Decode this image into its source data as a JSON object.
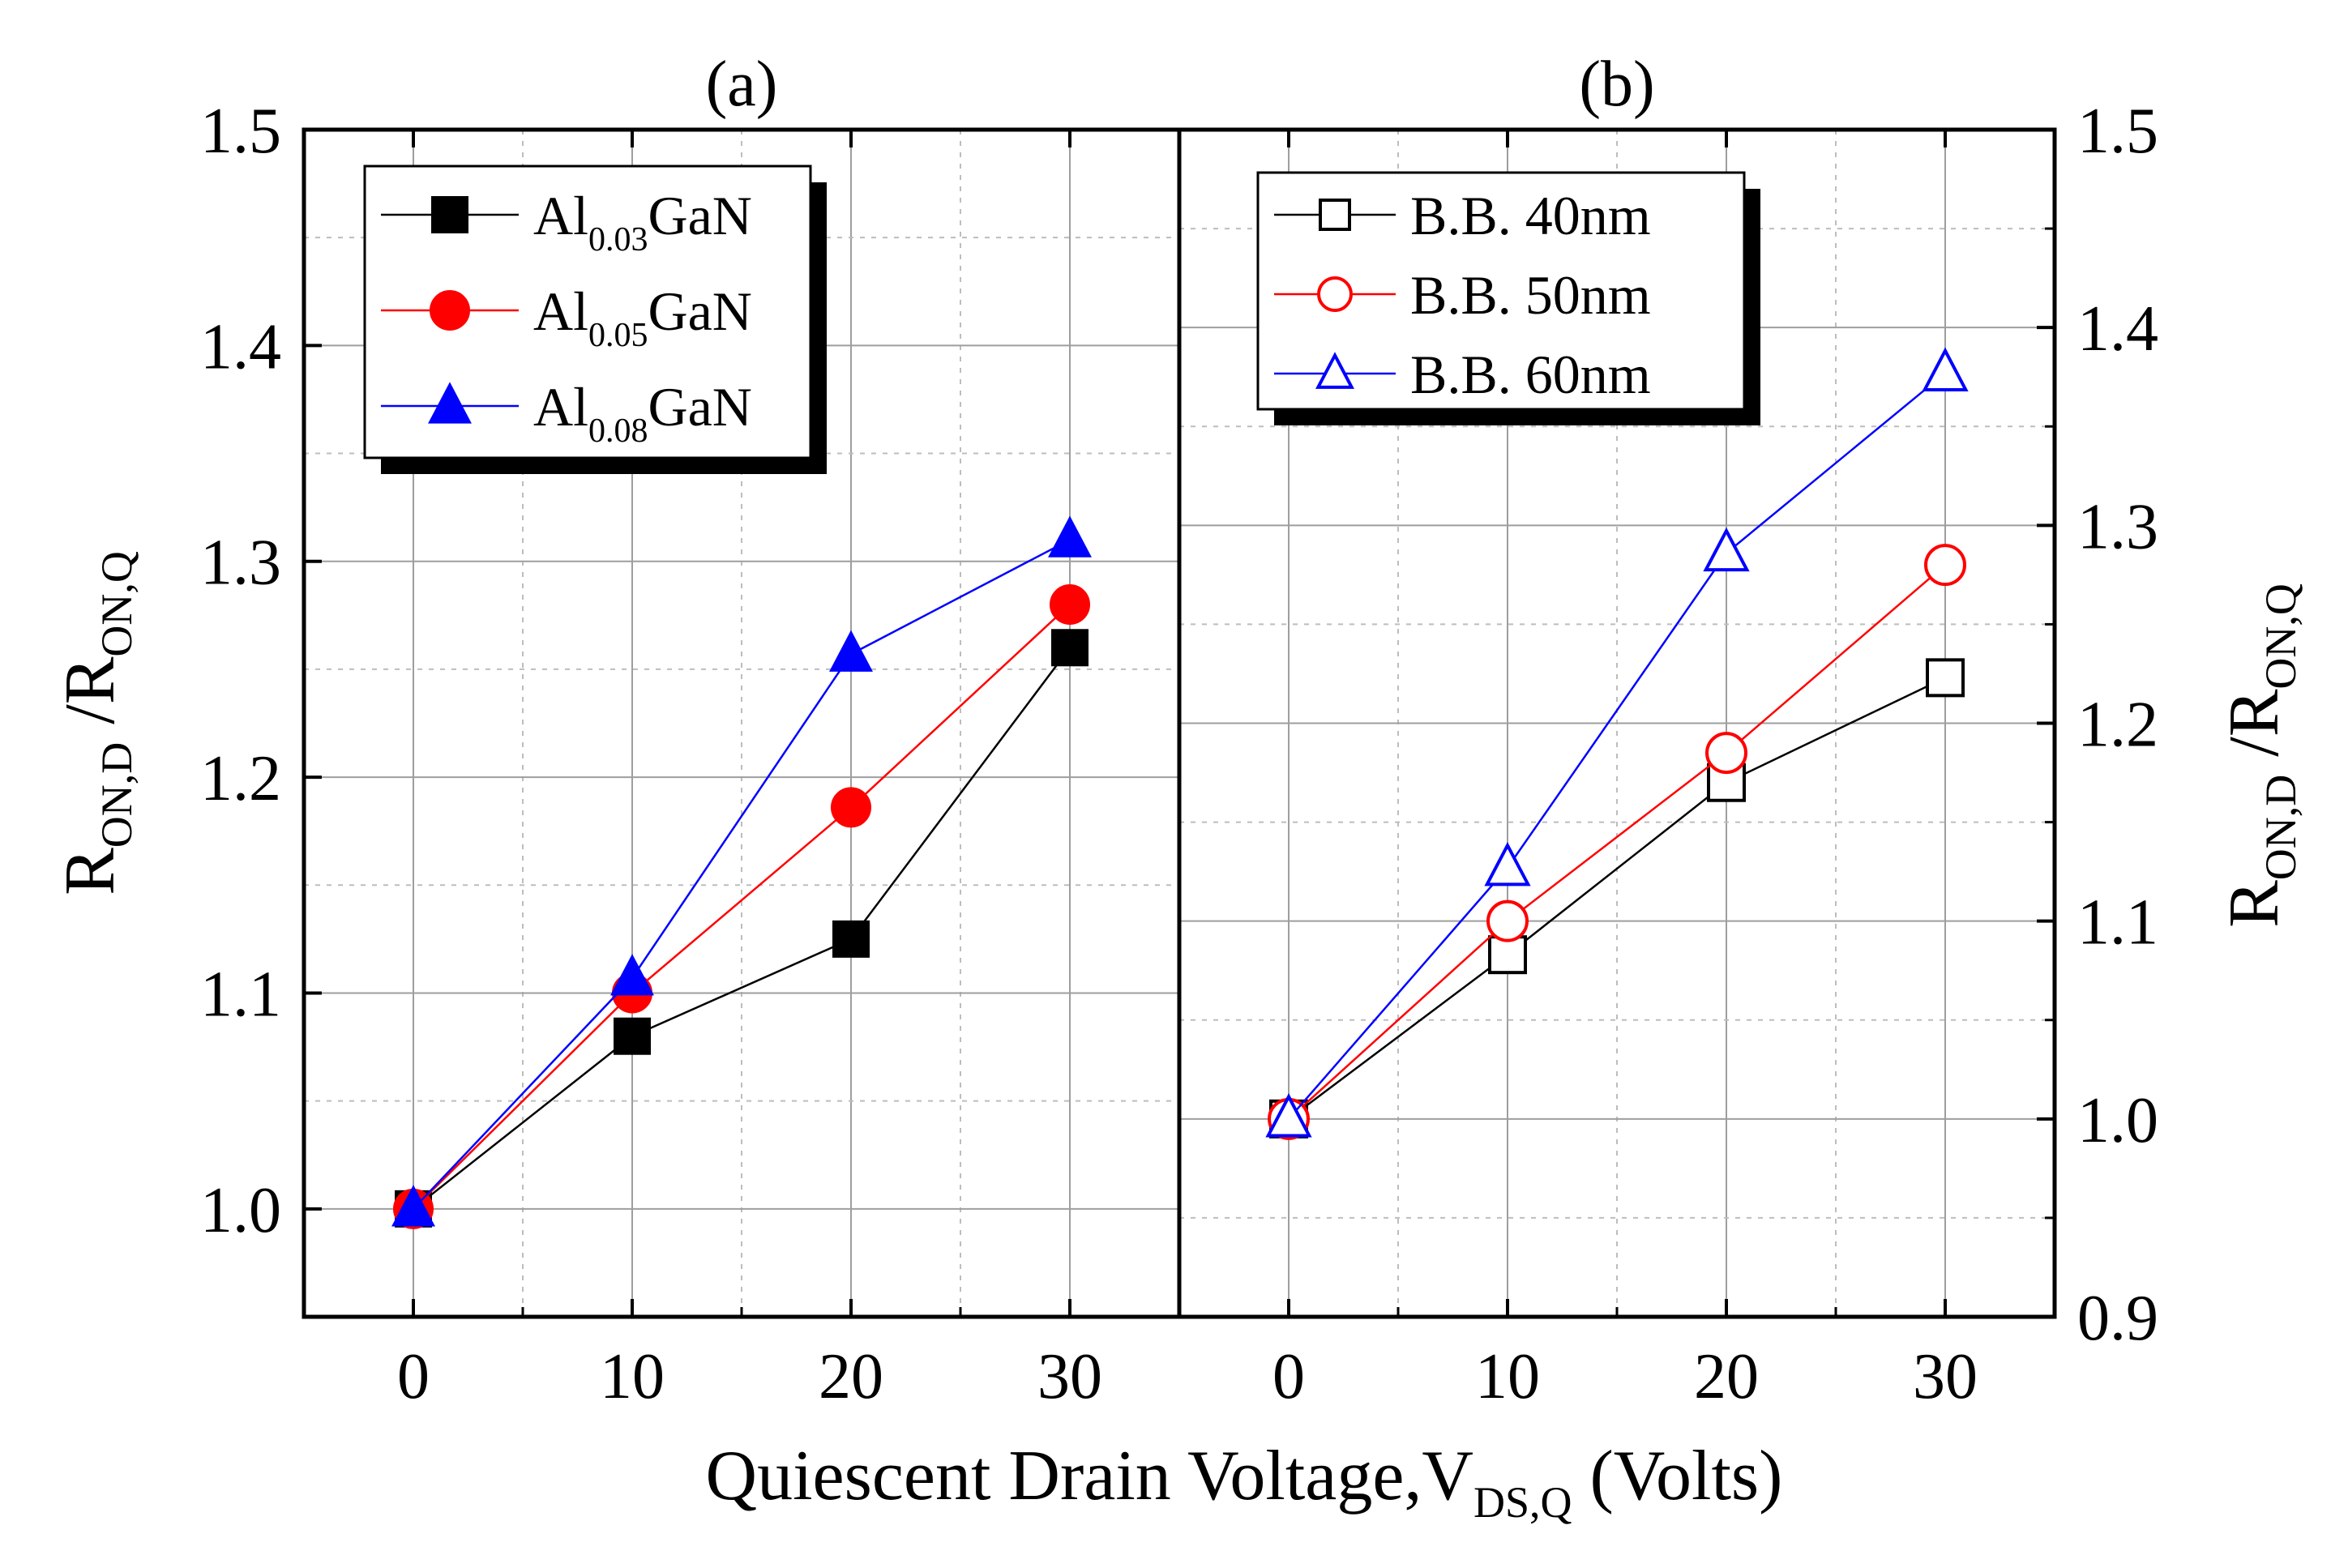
{
  "chart_data": [
    {
      "type": "line",
      "panel_label": "(a)",
      "x": [
        0,
        10,
        20,
        30
      ],
      "xlim": [
        -5,
        35
      ],
      "ylim": [
        0.95,
        1.5
      ],
      "xticks": [
        "0",
        "10",
        "20",
        "30"
      ],
      "yticks": [
        "1.0",
        "1.1",
        "1.2",
        "1.3",
        "1.4",
        "1.5"
      ],
      "ytick_values": [
        1.0,
        1.1,
        1.2,
        1.3,
        1.4,
        1.5
      ],
      "grid": true,
      "ylabel": {
        "main": "R",
        "sub1": "ON,D",
        "sep": " /R",
        "sub2": "ON,Q"
      },
      "legend_position": "top-left",
      "series": [
        {
          "name": {
            "pre": "Al",
            "sub": "0.03",
            "post": "GaN"
          },
          "color": "#000000",
          "marker": "square",
          "filled": true,
          "values": [
            1.0,
            1.08,
            1.125,
            1.26
          ]
        },
        {
          "name": {
            "pre": "Al",
            "sub": "0.05",
            "post": "GaN"
          },
          "color": "#ff0000",
          "marker": "circle",
          "filled": true,
          "values": [
            1.0,
            1.1,
            1.186,
            1.28
          ]
        },
        {
          "name": {
            "pre": "Al",
            "sub": "0.08",
            "post": "GaN"
          },
          "color": "#0000ff",
          "marker": "triangle",
          "filled": true,
          "values": [
            1.0,
            1.107,
            1.257,
            1.31
          ]
        }
      ]
    },
    {
      "type": "line",
      "panel_label": "(b)",
      "x": [
        0,
        10,
        20,
        30
      ],
      "xlim": [
        -5,
        35
      ],
      "ylim": [
        0.9,
        1.5
      ],
      "xticks": [
        "0",
        "10",
        "20",
        "30"
      ],
      "yticks": [
        "0.9",
        "1.0",
        "1.1",
        "1.2",
        "1.3",
        "1.4",
        "1.5"
      ],
      "ytick_values": [
        0.9,
        1.0,
        1.1,
        1.2,
        1.3,
        1.4,
        1.5
      ],
      "grid": true,
      "ylabel": {
        "main": "R",
        "sub1": "ON,D",
        "sep": " /R",
        "sub2": "ON,Q"
      },
      "legend_position": "top-left",
      "series": [
        {
          "name": "B.B.  40nm",
          "color": "#000000",
          "marker": "square",
          "filled": false,
          "values": [
            1.0,
            1.083,
            1.17,
            1.223
          ]
        },
        {
          "name": "B.B.  50nm",
          "color": "#ff0000",
          "marker": "circle",
          "filled": false,
          "values": [
            1.0,
            1.1,
            1.185,
            1.28
          ]
        },
        {
          "name": "B.B.  60nm",
          "color": "#0000ff",
          "marker": "triangle",
          "filled": false,
          "values": [
            1.0,
            1.127,
            1.286,
            1.377
          ]
        }
      ]
    }
  ],
  "xlabel": {
    "main": "Quiescent Drain Voltage,V",
    "sub": "DS,Q",
    "post": " (Volts)"
  }
}
